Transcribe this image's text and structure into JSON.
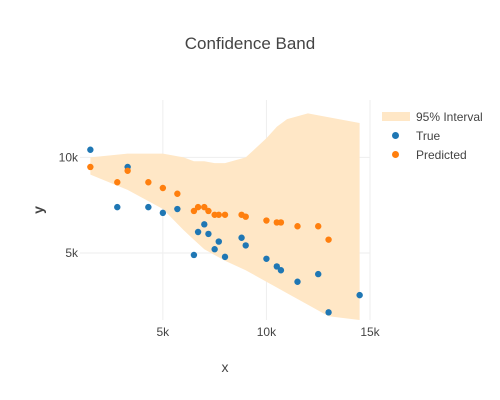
{
  "chart_data": {
    "type": "scatter",
    "title": "Confidence Band",
    "xlabel": "x",
    "ylabel": "y",
    "xlim": [
      1000,
      15000
    ],
    "ylim": [
      1500,
      13000
    ],
    "x_ticks": [
      5000,
      10000,
      15000
    ],
    "x_tick_labels": [
      "5k",
      "10k",
      "15k"
    ],
    "y_ticks": [
      5000,
      10000
    ],
    "y_tick_labels": [
      "5k",
      "10k"
    ],
    "grid": true,
    "legend_position": "top-right",
    "band": {
      "name": "95% Interval",
      "color": "#ffe7c6",
      "x": [
        1500,
        3300,
        5000,
        6000,
        6500,
        7000,
        7500,
        8000,
        9000,
        10000,
        10500,
        11000,
        12000,
        13000,
        14500
      ],
      "upper": [
        10000,
        10200,
        10200,
        10000,
        9800,
        9800,
        9700,
        9700,
        10000,
        11000,
        11600,
        12000,
        12300,
        12100,
        11800
      ],
      "lower": [
        9100,
        8300,
        7300,
        6200,
        5700,
        5200,
        4900,
        4600,
        4100,
        3500,
        3200,
        2900,
        2300,
        1700,
        1500
      ]
    },
    "series": [
      {
        "name": "True",
        "color": "#1f77b4",
        "x": [
          1500,
          2800,
          3300,
          4300,
          5000,
          5700,
          6500,
          6700,
          7000,
          7200,
          7500,
          7700,
          8000,
          8800,
          9000,
          10000,
          10500,
          10700,
          11500,
          12500,
          13000,
          14500
        ],
        "y": [
          10400,
          7400,
          9500,
          7400,
          7100,
          7300,
          4900,
          6100,
          6500,
          6000,
          5200,
          5600,
          4800,
          5800,
          5400,
          4700,
          4300,
          4100,
          3500,
          3900,
          1900,
          2800
        ]
      },
      {
        "name": "Predicted",
        "color": "#ff7f0e",
        "x": [
          1500,
          2800,
          3300,
          4300,
          5000,
          5700,
          6500,
          6700,
          7000,
          7200,
          7500,
          7700,
          8000,
          8800,
          9000,
          10000,
          10500,
          10700,
          11500,
          12500,
          13000
        ],
        "y": [
          9500,
          8700,
          9300,
          8700,
          8400,
          8100,
          7200,
          7400,
          7400,
          7200,
          7000,
          7000,
          7000,
          7000,
          6900,
          6700,
          6600,
          6600,
          6400,
          6400,
          5700
        ]
      }
    ]
  }
}
